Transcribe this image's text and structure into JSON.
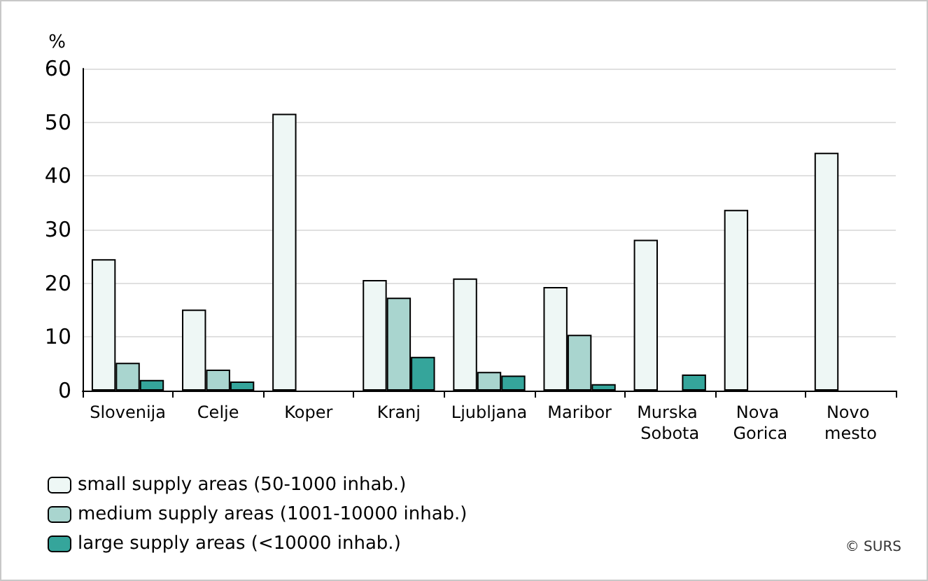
{
  "chart_data": {
    "type": "bar",
    "ylabel": "%",
    "categories": [
      "Slovenija",
      "Celje",
      "Koper",
      "Kranj",
      "Ljubljana",
      "Maribor",
      "Murska Sobota",
      "Nova Gorica",
      "Novo mesto"
    ],
    "series": [
      {
        "name": "small supply areas (50-1000 inhab.)",
        "color": "#eef7f5",
        "values": [
          24.5,
          15.1,
          51.6,
          20.6,
          20.9,
          19.3,
          28.1,
          33.7,
          44.3
        ]
      },
      {
        "name": "medium supply areas (1001-10000 inhab.)",
        "color": "#a9d5cf",
        "values": [
          5.2,
          3.9,
          null,
          17.3,
          3.5,
          10.4,
          null,
          null,
          null
        ]
      },
      {
        "name": "large supply areas (<10000 inhab.)",
        "color": "#35a59b",
        "values": [
          2.0,
          1.7,
          null,
          6.3,
          2.8,
          1.2,
          3.0,
          null,
          null
        ]
      }
    ],
    "ylim": [
      0,
      60
    ],
    "yticks": [
      0,
      10,
      20,
      30,
      40,
      50,
      60
    ],
    "grid": "y",
    "legend": "bottom left",
    "annotations": [
      "© SURS"
    ]
  }
}
